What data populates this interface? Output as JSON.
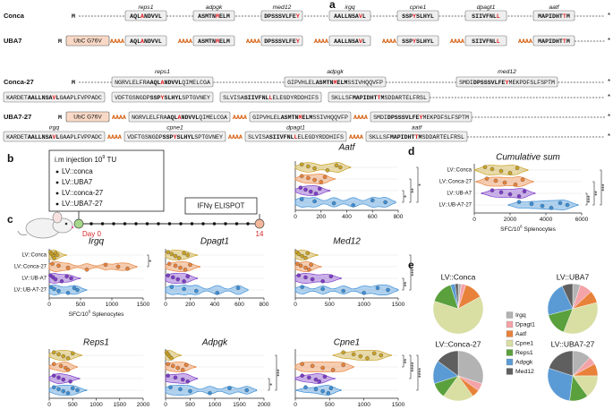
{
  "panel_labels": [
    "a",
    "b",
    "c",
    "d",
    "e"
  ],
  "sequences": {
    "constructs": [
      "Conca",
      "UBA7",
      "Conca-27",
      "UBA7-27"
    ],
    "start": "M",
    "ubc": "UbC G76V",
    "linker": "AAAA",
    "stop": "*",
    "epitopes": [
      {
        "name": "reps1",
        "short": {
          "pre": "AQL",
          "mut": "A",
          "post": "NDVVL"
        },
        "long": {
          "left": "NGRVLELFRA",
          "pre": "AQL",
          "mut": "A",
          "post": "NDVVL",
          "right": "QIMELCGA"
        }
      },
      {
        "name": "adpgk",
        "short": {
          "pre": "ASMTN",
          "mut": "M",
          "post": "ELM"
        },
        "long": {
          "left": "GIPVHLEL",
          "pre": "ASMTN",
          "mut": "M",
          "post": "ELM",
          "right": "SSIVHQQVFP"
        }
      },
      {
        "name": "med12",
        "short": {
          "pre": "DPSSSVLFE",
          "mut": "Y"
        },
        "long": {
          "left": "SMDI",
          "pre": "DPSSSVLFE",
          "mut": "Y",
          "right": "MEKPDFSLFSPTM"
        }
      },
      {
        "name": "irgq",
        "short": {
          "pre": "AALLNSA",
          "mut": "V",
          "post": "L"
        },
        "long": {
          "left": "KARDET",
          "pre": "AALLNSA",
          "mut": "V",
          "post": "L",
          "right": "GAAPLFVPPADC"
        }
      },
      {
        "name": "cpne1",
        "short": {
          "pre": "SSP",
          "mut": "Y",
          "post": "SLHYL"
        },
        "long": {
          "left": "VDFTGSNGDP",
          "pre": "SSP",
          "mut": "Y",
          "post": "SLHYL",
          "right": "SPTGVNEY"
        }
      },
      {
        "name": "dpagt1",
        "short": {
          "pre": "SIIVFNL",
          "mut": "L"
        },
        "long": {
          "left": "SLVISA",
          "pre": "SIIVFNL",
          "mut": "L",
          "right": "ELEGDYRDDHIFS"
        }
      },
      {
        "name": "aatf",
        "short": {
          "pre": "MAPIDHT",
          "mut": "T",
          "post": "M"
        },
        "long": {
          "left": "SKLLSF",
          "pre": "MAPIDHT",
          "mut": "T",
          "post": "M",
          "right": "SDDARTELFRSL"
        }
      }
    ]
  },
  "schedule": {
    "injection": {
      "text": "i.m injection 10",
      "sup": "9",
      "tail": " TU"
    },
    "groups": [
      "LV::conca",
      "LV::UBA7",
      "LV::conca-27",
      "LV::UBA7-27"
    ],
    "readout": "IFNγ ELISPOT",
    "start": "Day 0",
    "end": "14"
  },
  "chart_data": [
    {
      "type": "violin",
      "title": "Irgq",
      "categories": [
        "LV::Conca",
        "LV::Conca-27",
        "LV::UB-A7",
        "LV::UB-A7-27"
      ],
      "xlim": [
        0,
        1500
      ],
      "xticks": [
        0,
        500,
        1000,
        1500
      ],
      "xlabel": {
        "text": "SFC/10",
        "sup": "6",
        "tail": " Splenocytes"
      },
      "series": [
        {
          "color": "#c9a227",
          "values": [
            20,
            40,
            60,
            80,
            100,
            130
          ]
        },
        {
          "color": "#e8823a",
          "values": [
            50,
            150,
            300,
            600,
            900,
            1100,
            1250
          ]
        },
        {
          "color": "#7d3cc8",
          "values": [
            20,
            60,
            100,
            200,
            280,
            350
          ]
        },
        {
          "color": "#3d8fd6",
          "values": [
            30,
            80,
            150,
            300,
            400,
            450
          ]
        }
      ],
      "annotations": [
        {
          "label": "*",
          "between": [
            0,
            1
          ]
        }
      ]
    },
    {
      "type": "violin",
      "title": "Dpagt1",
      "xlim": [
        0,
        800
      ],
      "xticks": [
        0,
        200,
        400,
        600,
        800
      ],
      "series": [
        {
          "color": "#c9a227",
          "values": [
            20,
            50,
            80,
            110,
            150,
            180
          ]
        },
        {
          "color": "#e8823a",
          "values": [
            30,
            80,
            120,
            160,
            200
          ]
        },
        {
          "color": "#7d3cc8",
          "values": [
            20,
            60,
            100,
            150,
            180
          ]
        },
        {
          "color": "#3d8fd6",
          "values": [
            50,
            150,
            250,
            420,
            590
          ]
        }
      ]
    },
    {
      "type": "violin",
      "title": "Med12",
      "xlim": [
        0,
        1500
      ],
      "xticks": [
        0,
        500,
        1000,
        1500
      ],
      "series": [
        {
          "color": "#c9a227",
          "values": [
            20,
            50,
            100,
            150,
            180
          ]
        },
        {
          "color": "#e8823a",
          "values": [
            30,
            80,
            150,
            200,
            230
          ]
        },
        {
          "color": "#7d3cc8",
          "values": [
            50,
            150,
            250,
            400,
            520
          ]
        },
        {
          "color": "#3d8fd6",
          "values": [
            100,
            400,
            700,
            1000,
            1200,
            1350
          ]
        }
      ],
      "annotations": [
        {
          "label": "**",
          "between": [
            2,
            3
          ]
        },
        {
          "label": "***",
          "between": [
            0,
            3
          ]
        }
      ]
    },
    {
      "type": "violin",
      "title": "Reps1",
      "xlim": [
        0,
        2000
      ],
      "xticks": [
        0,
        500,
        1000,
        1500,
        2000
      ],
      "series": [
        {
          "color": "#c9a227",
          "values": [
            100,
            200,
            300,
            400,
            500
          ]
        },
        {
          "color": "#e8823a",
          "values": [
            100,
            250,
            350,
            400
          ]
        },
        {
          "color": "#7d3cc8",
          "values": [
            100,
            200,
            300,
            450
          ]
        },
        {
          "color": "#3d8fd6",
          "values": [
            100,
            200,
            300,
            400,
            500,
            600
          ]
        }
      ]
    },
    {
      "type": "violin",
      "title": "Adpgk",
      "xlim": [
        0,
        2000
      ],
      "xticks": [
        0,
        500,
        1000,
        1500,
        2000
      ],
      "series": [
        {
          "color": "#c9a227",
          "values": [
            20,
            50,
            80,
            120
          ]
        },
        {
          "color": "#e8823a",
          "values": [
            50,
            150,
            250,
            350,
            420
          ]
        },
        {
          "color": "#7d3cc8",
          "values": [
            50,
            200,
            350,
            450
          ]
        },
        {
          "color": "#3d8fd6",
          "values": [
            100,
            300,
            500,
            900,
            1300,
            1650
          ]
        }
      ],
      "annotations": [
        {
          "label": "*",
          "between": [
            2,
            3
          ]
        },
        {
          "label": "***",
          "between": [
            0,
            3
          ]
        }
      ]
    },
    {
      "type": "violin",
      "title": "Cpne1",
      "xlim": [
        0,
        1500
      ],
      "xticks": [
        0,
        500,
        1000,
        1500
      ],
      "series": [
        {
          "color": "#c9a227",
          "values": [
            700,
            850,
            950,
            1050,
            1150,
            1250
          ]
        },
        {
          "color": "#e8823a",
          "values": [
            100,
            250,
            400,
            550,
            700
          ]
        },
        {
          "color": "#7d3cc8",
          "values": [
            100,
            200,
            300,
            350,
            430
          ]
        },
        {
          "color": "#3d8fd6",
          "values": [
            150,
            300,
            400,
            480,
            520
          ]
        }
      ],
      "annotations": [
        {
          "label": "**",
          "between": [
            0,
            1
          ]
        },
        {
          "label": "****",
          "between": [
            0,
            2
          ]
        },
        {
          "label": "****",
          "between": [
            0,
            3
          ]
        }
      ]
    },
    {
      "type": "violin",
      "title": "Aatf",
      "xlim": [
        0,
        800
      ],
      "xticks": [
        0,
        200,
        400,
        600,
        800
      ],
      "series": [
        {
          "color": "#c9a227",
          "values": [
            50,
            100,
            150,
            250,
            320,
            350
          ]
        },
        {
          "color": "#e8823a",
          "values": [
            50,
            100,
            150,
            200,
            230
          ]
        },
        {
          "color": "#7d3cc8",
          "values": [
            40,
            80,
            120,
            160,
            190
          ]
        },
        {
          "color": "#3d8fd6",
          "values": [
            50,
            150,
            300,
            450,
            600,
            700
          ]
        }
      ],
      "annotations": [
        {
          "label": "*",
          "between": [
            2,
            3
          ]
        },
        {
          "label": "**",
          "between": [
            1,
            3
          ]
        },
        {
          "label": "*",
          "between": [
            0,
            3
          ]
        }
      ]
    },
    {
      "type": "violin",
      "title": "Cumulative sum",
      "categories": [
        "LV::Conca",
        "LV::Conca-27",
        "LV::UB-A7",
        "LV::UB-A7-27"
      ],
      "xlim": [
        0,
        6000
      ],
      "xticks": [
        0,
        2000,
        4000,
        6000
      ],
      "xlabel": {
        "text": "SFC/10",
        "sup": "6",
        "tail": " Splenocytes"
      },
      "series": [
        {
          "color": "#c9a227",
          "values": [
            600,
            1000,
            1500,
            2000,
            2400
          ]
        },
        {
          "color": "#e8823a",
          "values": [
            700,
            1200,
            1700,
            2300,
            2700
          ]
        },
        {
          "color": "#7d3cc8",
          "values": [
            1000,
            1500,
            2000,
            2500,
            2800
          ]
        },
        {
          "color": "#3d8fd6",
          "values": [
            2500,
            3200,
            3800,
            4300,
            4800,
            5200
          ]
        }
      ],
      "annotations": [
        {
          "label": "***",
          "between": [
            2,
            3
          ]
        },
        {
          "label": "**",
          "between": [
            1,
            3
          ]
        },
        {
          "label": "***",
          "between": [
            0,
            3
          ]
        }
      ]
    },
    {
      "type": "pie",
      "categories": [
        "Irgq",
        "Dpagt1",
        "Aatf",
        "Cpne1",
        "Reps1",
        "Adpgk",
        "Med12"
      ],
      "colors": [
        "#b3b3b3",
        "#f4a3a8",
        "#e8823a",
        "#d9dea3",
        "#5aa03c",
        "#5b9bd5",
        "#5f5f5f"
      ],
      "pies": [
        {
          "title": "LV::Conca",
          "values": [
            2,
            3,
            12,
            63,
            15,
            3,
            2
          ]
        },
        {
          "title": "LV::UBA7",
          "values": [
            5,
            8,
            8,
            35,
            15,
            22,
            7
          ]
        },
        {
          "title": "LV::Conca-27",
          "values": [
            30,
            5,
            5,
            20,
            10,
            15,
            15
          ]
        },
        {
          "title": "LV::UBA7-27",
          "values": [
            12,
            5,
            8,
            15,
            12,
            28,
            20
          ]
        }
      ]
    }
  ]
}
